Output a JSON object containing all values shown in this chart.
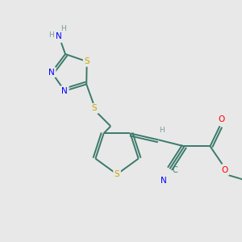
{
  "background_color": "#e8e8e8",
  "atom_colors": {
    "S": "#c8a800",
    "N": "#0000ff",
    "O": "#ff0000",
    "C": "#3a7a6a",
    "H": "#7a9a9a"
  },
  "bond_color": "#3a7a6a",
  "figsize": [
    3.0,
    3.0
  ],
  "dpi": 100
}
